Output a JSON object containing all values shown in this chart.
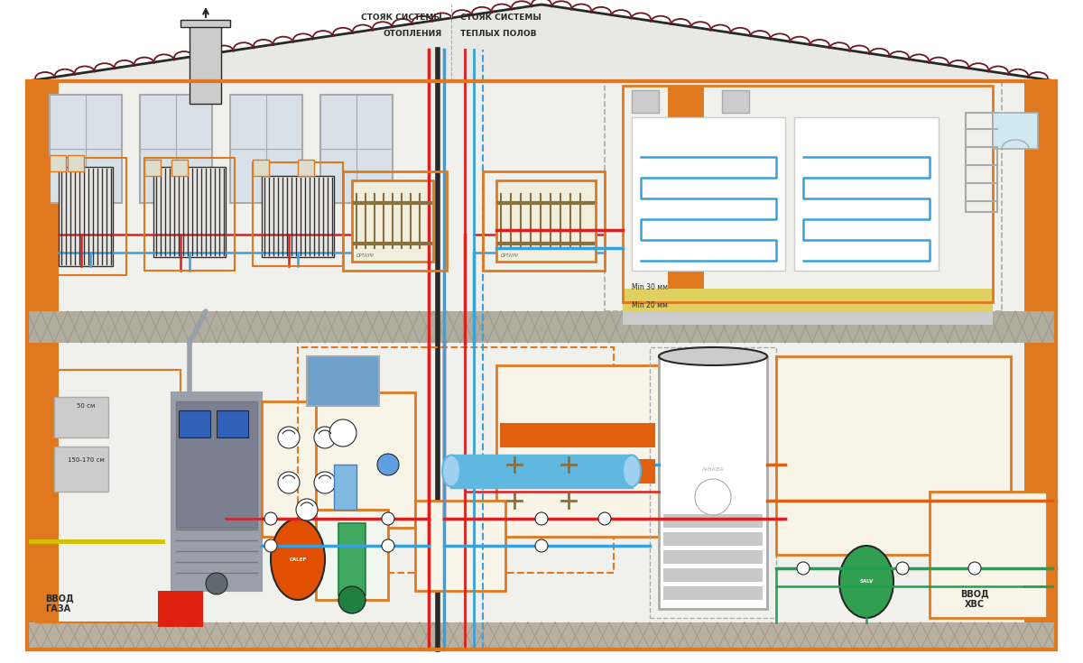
{
  "bg_color": "#ffffff",
  "wall_color": "#f0f0ec",
  "roof_color": "#6e1520",
  "border_orange": "#e07820",
  "pipe_red": "#dc2020",
  "pipe_blue": "#38a0dc",
  "pipe_blue2": "#60b8e0",
  "pipe_green": "#20a050",
  "pipe_orange_pipe": "#e06010",
  "pipe_yellow": "#d4b000",
  "pipe_dark": "#303030",
  "floor_color": "#b0aca0",
  "window_color": "#d8e0e8",
  "window_edge": "#909090",
  "gray_boiler": "#9aa0aa",
  "text_label1": "СТОЯК СИСТЕМЫ",
  "text_label2": "ОТОПЛЕНИЯ",
  "text_label3": "СТОЯК СИСТЕМЫ",
  "text_label4": "ТЕПЛЫХ ПОЛОВ",
  "text_gas": "ВВОД\nГАЗА",
  "text_cold": "ВВОД\nХВС",
  "label_50": "50 см",
  "label_150": "150-170 см",
  "label_min30": "Min 30 мм",
  "label_min20": "Min 20 мм",
  "figsize": [
    12.0,
    7.35
  ],
  "dpi": 100
}
